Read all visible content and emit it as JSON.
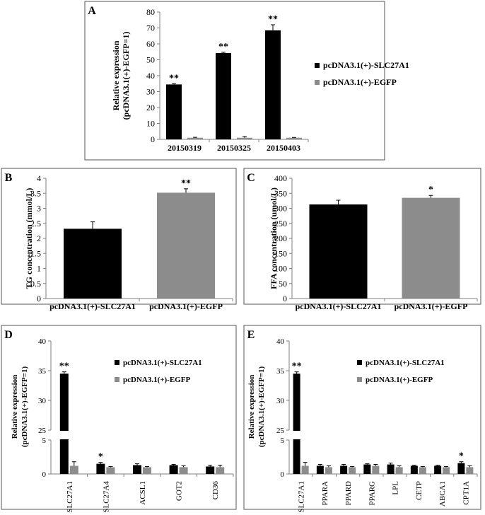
{
  "colors": {
    "series1": "#000000",
    "series2": "#8c8c8c",
    "axis": "#7f7f7f",
    "frame": "#555555",
    "text": "#000000"
  },
  "chart_data": [
    {
      "panel": "A",
      "type": "bar",
      "ylabel": [
        "Relative expression",
        "(pcDNA3.1(+)-EGFP=1)"
      ],
      "categories": [
        "20150319",
        "20150325",
        "20150403"
      ],
      "ylim": [
        0,
        80
      ],
      "yticks": [
        0,
        10,
        20,
        30,
        40,
        50,
        60,
        70,
        80
      ],
      "legend": "right",
      "series": [
        {
          "name": "pcDNA3.1(+)-SLC27A1",
          "values": [
            34.5,
            54.2,
            68.5
          ],
          "errors": [
            0.5,
            0.5,
            3.5
          ],
          "sig": [
            "**",
            "**",
            "**"
          ]
        },
        {
          "name": "pcDNA3.1(+)-EGFP",
          "values": [
            1,
            1,
            1
          ],
          "errors": [
            0.3,
            0.8,
            0.2
          ],
          "sig": [
            "",
            "",
            ""
          ]
        }
      ]
    },
    {
      "panel": "B",
      "type": "bar",
      "ylabel": [
        "TG concentration (mmol/L)"
      ],
      "categories": [
        "pcDNA3.1(+)-SLC27A1",
        "pcDNA3.1(+)-EGFP"
      ],
      "ylim": [
        0,
        4
      ],
      "yticks": [
        0,
        0.5,
        1,
        1.5,
        2,
        2.5,
        3,
        3.5,
        4
      ],
      "values": [
        2.32,
        3.52
      ],
      "errors": [
        0.23,
        0.13
      ],
      "sig": [
        "",
        "**"
      ]
    },
    {
      "panel": "C",
      "type": "bar",
      "ylabel": [
        "FFA concentration (umol/L)"
      ],
      "categories": [
        "pcDNA3.1(+)-SLC27A1",
        "pcDNA3.1(+)-EGFP"
      ],
      "ylim": [
        0,
        400
      ],
      "yticks": [
        0,
        50,
        100,
        150,
        200,
        250,
        300,
        350,
        400
      ],
      "values": [
        313,
        335
      ],
      "errors": [
        14,
        8
      ],
      "sig": [
        "",
        "*"
      ]
    },
    {
      "panel": "D",
      "type": "bar",
      "ylabel": [
        "Relative expression",
        "(pcDNA3.1(+)-EGFP=1)"
      ],
      "categories": [
        "SLC27A1",
        "SLC27A4",
        "ACSL1",
        "GOT2",
        "CD36"
      ],
      "ylim": [
        0,
        40
      ],
      "yticks": [
        0,
        5,
        25,
        30,
        35,
        40
      ],
      "axis_break": [
        5,
        25
      ],
      "legend": "right",
      "series": [
        {
          "name": "pcDNA3.1(+)-SLC27A1",
          "values": [
            34.5,
            1.5,
            1.3,
            1.3,
            1.1
          ],
          "errors": [
            0.3,
            0.2,
            0.2,
            0.1,
            0.2
          ],
          "sig": [
            "**",
            "*",
            "",
            "",
            ""
          ]
        },
        {
          "name": "pcDNA3.1(+)-EGFP",
          "values": [
            1.2,
            1.0,
            1.0,
            1.0,
            1.0
          ],
          "errors": [
            0.6,
            0.1,
            0.1,
            0.2,
            0.3
          ],
          "sig": [
            "",
            "",
            "",
            "",
            ""
          ]
        }
      ]
    },
    {
      "panel": "E",
      "type": "bar",
      "ylabel": [
        "Relative expression",
        "(pcDNA3.1(+)-EGFP=1)"
      ],
      "categories": [
        "SLC27A1",
        "PPARA",
        "PPARD",
        "PPARG",
        "LPL",
        "CETP",
        "ABCA1",
        "CPT1A"
      ],
      "ylim": [
        0,
        40
      ],
      "yticks": [
        0,
        5,
        25,
        30,
        35,
        40
      ],
      "axis_break": [
        5,
        25
      ],
      "legend": "right",
      "series": [
        {
          "name": "pcDNA3.1(+)-SLC27A1",
          "values": [
            34.5,
            1.2,
            1.2,
            1.4,
            1.4,
            1.2,
            1.2,
            1.6
          ],
          "errors": [
            0.3,
            0.2,
            0.2,
            0.1,
            0.2,
            0.1,
            0.1,
            0.2
          ],
          "sig": [
            "**",
            "",
            "",
            "",
            "",
            "",
            "",
            "*"
          ]
        },
        {
          "name": "pcDNA3.1(+)-EGFP",
          "values": [
            1.2,
            1.0,
            1.0,
            1.2,
            1.0,
            1.0,
            1.0,
            1.0
          ],
          "errors": [
            0.5,
            0.2,
            0.1,
            0.2,
            0.2,
            0.1,
            0.1,
            0.2
          ],
          "sig": [
            "",
            "",
            "",
            "",
            "",
            "",
            "",
            ""
          ]
        }
      ]
    }
  ]
}
